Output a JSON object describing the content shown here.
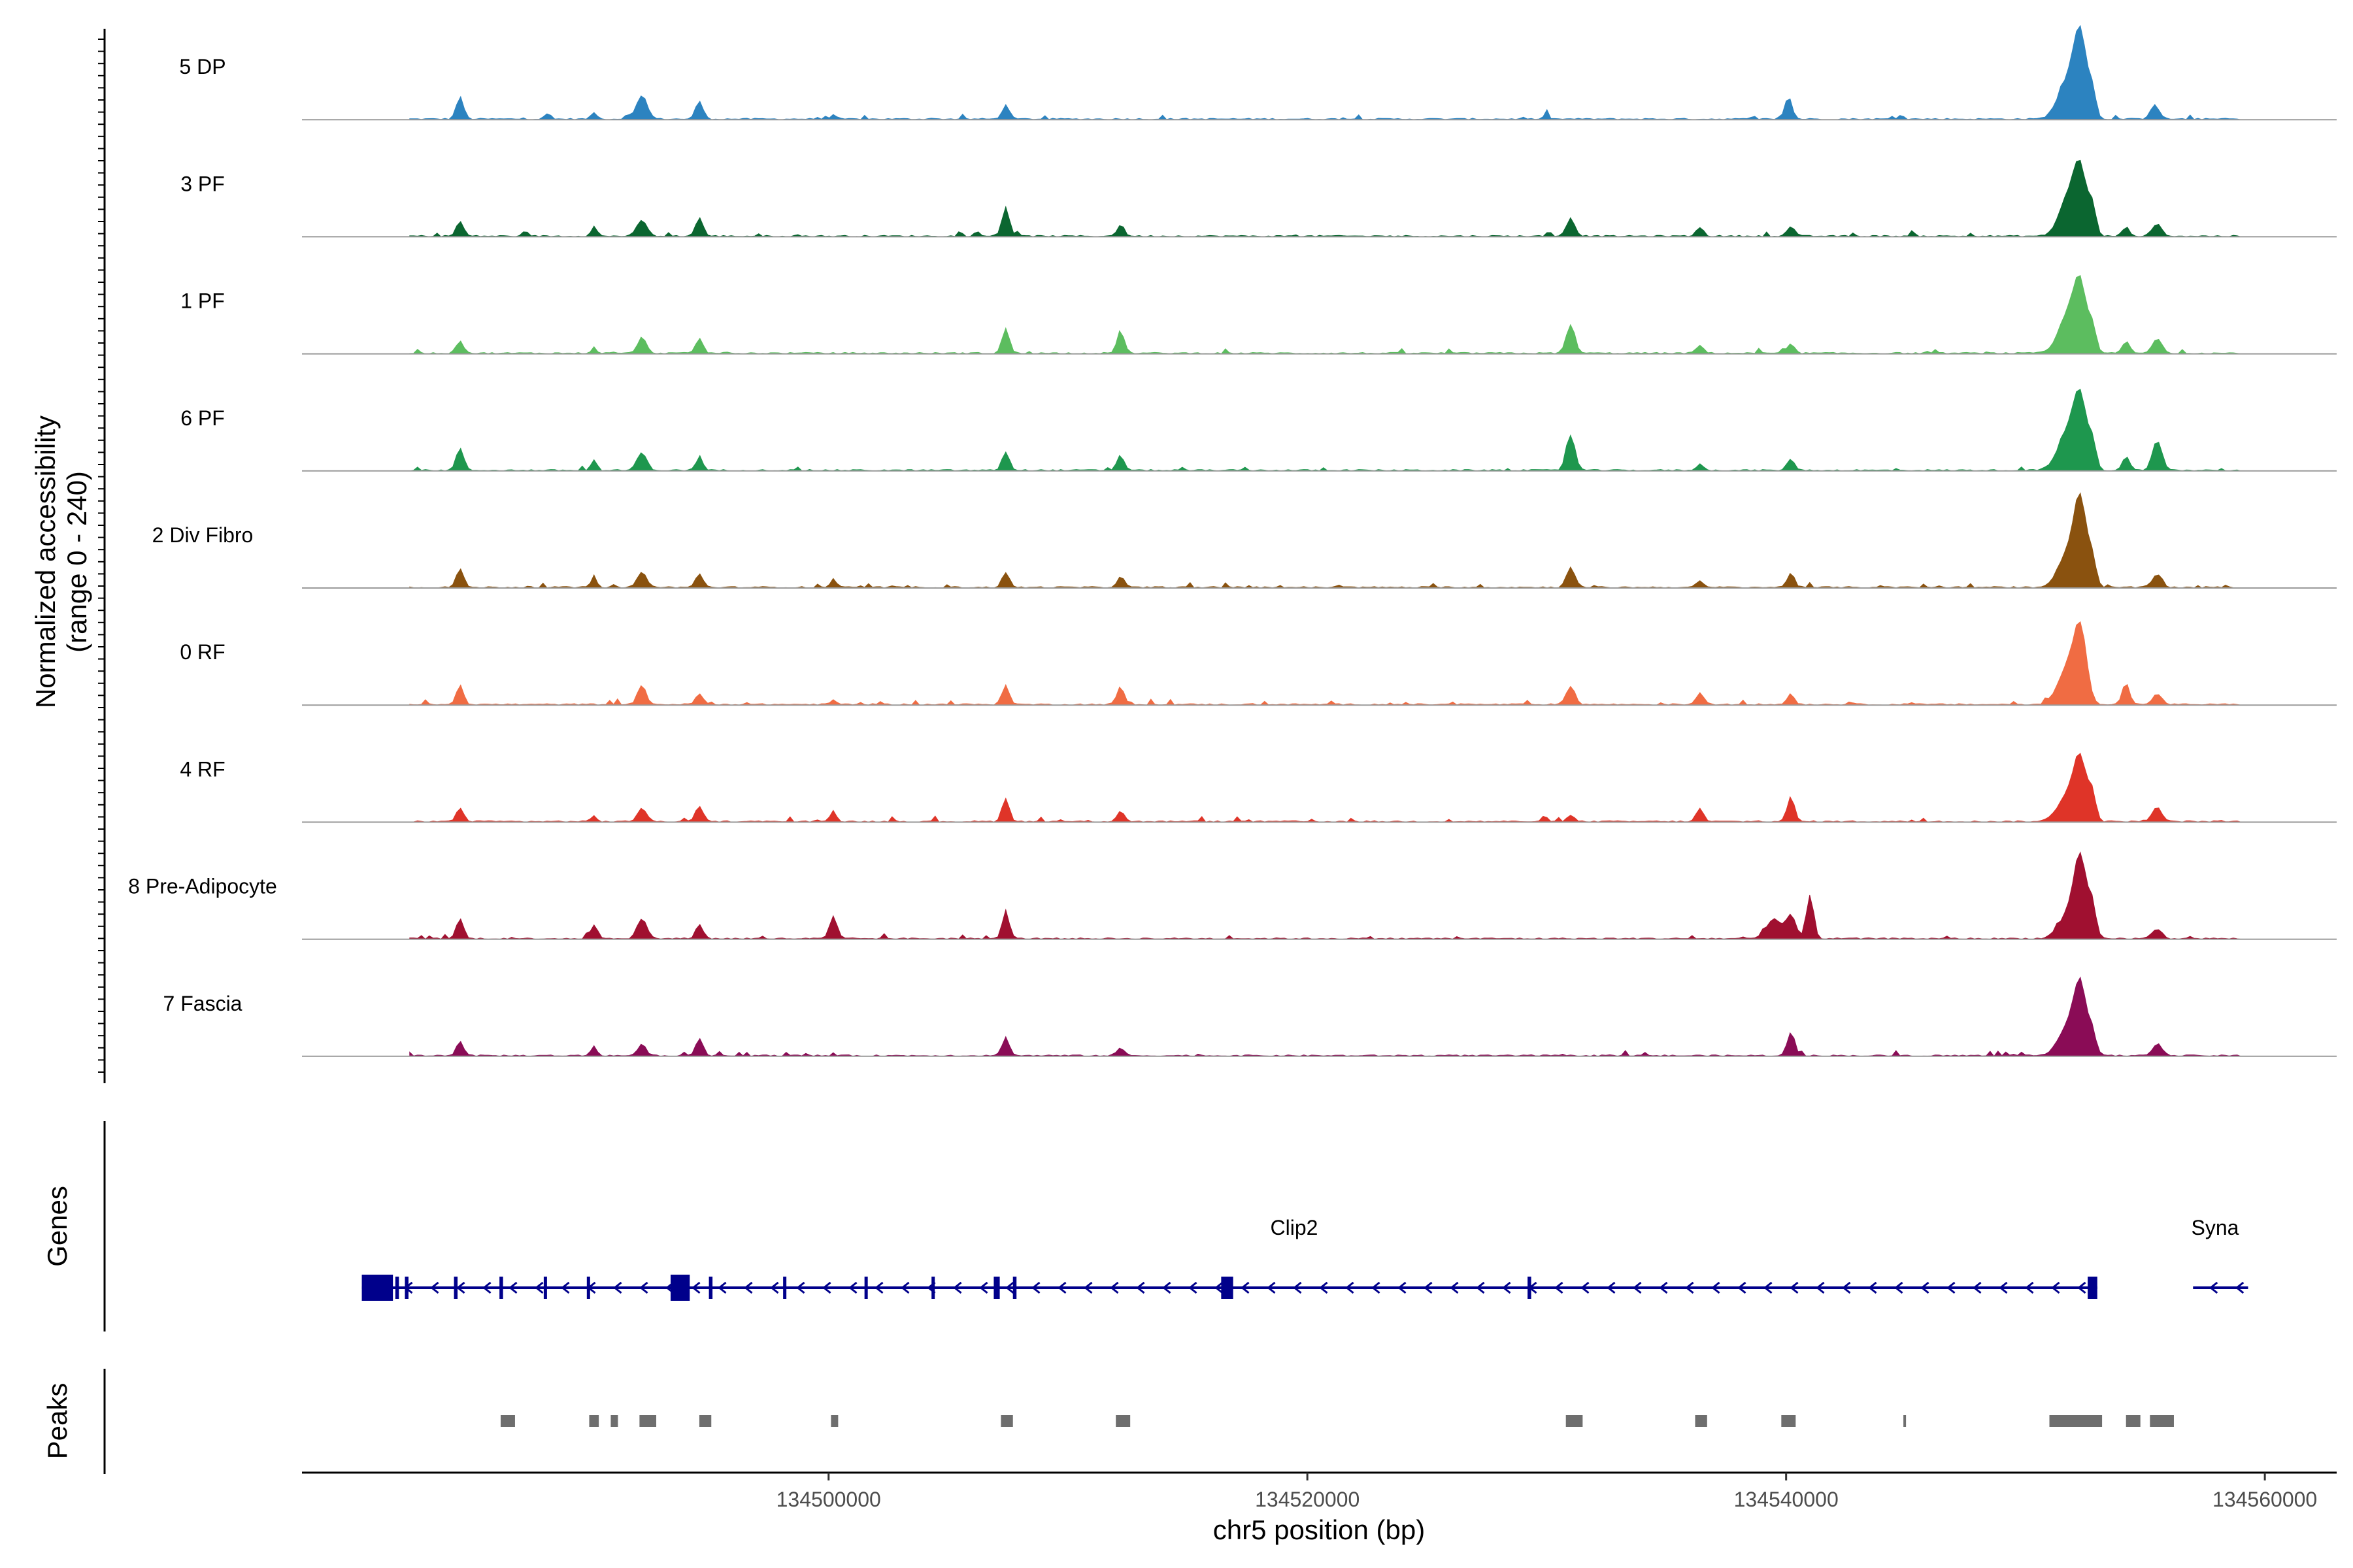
{
  "chart_data": {
    "type": "area",
    "title": "",
    "ylabel_line1": "Normalized accessibility",
    "ylabel_line2": "(range 0 - 240)",
    "xlabel": "chr5 position (bp)",
    "genes_label": "Genes",
    "peaks_label": "Peaks",
    "chromosome": "chr5",
    "xlim": [
      134478000,
      134563000
    ],
    "xticks": [
      134500000,
      134520000,
      134540000,
      134560000
    ],
    "xtick_labels": [
      "134500000",
      "134520000",
      "134540000",
      "134560000"
    ],
    "ylim": [
      0,
      240
    ],
    "tracks": [
      {
        "name": "5 DP",
        "color": "#2c83c0",
        "peaks": [
          [
            134484600,
            45,
            150
          ],
          [
            134488200,
            10,
            100
          ],
          [
            134490200,
            14,
            110
          ],
          [
            134491600,
            10,
            100
          ],
          [
            134492200,
            47,
            220
          ],
          [
            134494600,
            37,
            150
          ],
          [
            134500200,
            8,
            110
          ],
          [
            134507400,
            28,
            150
          ],
          [
            134530000,
            8,
            110
          ],
          [
            134540100,
            45,
            150
          ],
          [
            134544800,
            8,
            100
          ],
          [
            134551800,
            80,
            420
          ],
          [
            134552300,
            150,
            260
          ],
          [
            134552800,
            48,
            150
          ],
          [
            134555400,
            30,
            180
          ]
        ]
      },
      {
        "name": "3 PF",
        "color": "#0b6630",
        "peaks": [
          [
            134484600,
            30,
            150
          ],
          [
            134490200,
            20,
            120
          ],
          [
            134492200,
            33,
            200
          ],
          [
            134494600,
            38,
            150
          ],
          [
            134507400,
            60,
            150
          ],
          [
            134512200,
            23,
            150
          ],
          [
            134531000,
            36,
            180
          ],
          [
            134536400,
            18,
            150
          ],
          [
            134540200,
            20,
            150
          ],
          [
            134551800,
            80,
            380
          ],
          [
            134552300,
            120,
            260
          ],
          [
            134552800,
            54,
            150
          ],
          [
            134554200,
            18,
            150
          ],
          [
            134555500,
            24,
            200
          ]
        ]
      },
      {
        "name": "1 PF",
        "color": "#5cbd5f",
        "peaks": [
          [
            134484600,
            26,
            150
          ],
          [
            134490200,
            12,
            110
          ],
          [
            134492200,
            32,
            180
          ],
          [
            134494600,
            30,
            150
          ],
          [
            134507400,
            50,
            150
          ],
          [
            134512200,
            46,
            150
          ],
          [
            134531000,
            58,
            180
          ],
          [
            134536400,
            16,
            150
          ],
          [
            134540200,
            18,
            150
          ],
          [
            134551800,
            80,
            400
          ],
          [
            134552300,
            120,
            260
          ],
          [
            134552800,
            48,
            150
          ],
          [
            134554200,
            24,
            150
          ],
          [
            134555500,
            28,
            200
          ]
        ]
      },
      {
        "name": "6 PF",
        "color": "#1e974e",
        "peaks": [
          [
            134484600,
            46,
            150
          ],
          [
            134490200,
            20,
            120
          ],
          [
            134492200,
            36,
            200
          ],
          [
            134494600,
            22,
            150
          ],
          [
            134507400,
            38,
            150
          ],
          [
            134512200,
            30,
            150
          ],
          [
            134531000,
            72,
            180
          ],
          [
            134536400,
            12,
            150
          ],
          [
            134540200,
            24,
            150
          ],
          [
            134551800,
            80,
            420
          ],
          [
            134552300,
            124,
            260
          ],
          [
            134552800,
            52,
            150
          ],
          [
            134554200,
            28,
            150
          ],
          [
            134555500,
            60,
            200
          ]
        ]
      },
      {
        "name": "2 Div Fibro",
        "color": "#8a520f",
        "peaks": [
          [
            134484600,
            38,
            150
          ],
          [
            134490200,
            22,
            120
          ],
          [
            134492200,
            30,
            200
          ],
          [
            134494600,
            28,
            150
          ],
          [
            134500200,
            18,
            120
          ],
          [
            134507400,
            30,
            150
          ],
          [
            134512200,
            22,
            150
          ],
          [
            134531000,
            40,
            180
          ],
          [
            134536400,
            12,
            150
          ],
          [
            134540200,
            30,
            150
          ],
          [
            134551800,
            70,
            420
          ],
          [
            134552300,
            156,
            260
          ],
          [
            134552800,
            50,
            150
          ],
          [
            134555500,
            26,
            200
          ]
        ]
      },
      {
        "name": "0 RF",
        "color": "#f06c43",
        "peaks": [
          [
            134484600,
            40,
            150
          ],
          [
            134492200,
            38,
            180
          ],
          [
            134494600,
            22,
            150
          ],
          [
            134500200,
            10,
            110
          ],
          [
            134507400,
            40,
            150
          ],
          [
            134512200,
            36,
            150
          ],
          [
            134531000,
            38,
            180
          ],
          [
            134536400,
            24,
            150
          ],
          [
            134540200,
            22,
            150
          ],
          [
            134551800,
            76,
            420
          ],
          [
            134552300,
            130,
            260
          ],
          [
            134554200,
            44,
            150
          ],
          [
            134555500,
            20,
            200
          ]
        ]
      },
      {
        "name": "4 RF",
        "color": "#df3428",
        "peaks": [
          [
            134484600,
            28,
            150
          ],
          [
            134490200,
            12,
            110
          ],
          [
            134492200,
            28,
            180
          ],
          [
            134494600,
            32,
            150
          ],
          [
            134500200,
            24,
            120
          ],
          [
            134507400,
            48,
            150
          ],
          [
            134512200,
            22,
            150
          ],
          [
            134531000,
            12,
            150
          ],
          [
            134536400,
            26,
            150
          ],
          [
            134540200,
            50,
            150
          ],
          [
            134551800,
            56,
            420
          ],
          [
            134552300,
            110,
            260
          ],
          [
            134552800,
            50,
            150
          ],
          [
            134555500,
            28,
            200
          ]
        ]
      },
      {
        "name": "8 Pre-Adipocyte",
        "color": "#a01030",
        "peaks": [
          [
            134484600,
            40,
            150
          ],
          [
            134490200,
            28,
            150
          ],
          [
            134492200,
            40,
            200
          ],
          [
            134494600,
            30,
            150
          ],
          [
            134500200,
            46,
            150
          ],
          [
            134507400,
            52,
            150
          ],
          [
            134539500,
            40,
            300
          ],
          [
            134540200,
            46,
            200
          ],
          [
            134541000,
            90,
            150
          ],
          [
            134551800,
            50,
            400
          ],
          [
            134552300,
            150,
            260
          ],
          [
            134552800,
            60,
            150
          ],
          [
            134555500,
            20,
            200
          ]
        ]
      },
      {
        "name": "7 Fascia",
        "color": "#8a0c56",
        "peaks": [
          [
            134484600,
            30,
            150
          ],
          [
            134490200,
            20,
            120
          ],
          [
            134492200,
            22,
            180
          ],
          [
            134494600,
            36,
            150
          ],
          [
            134507400,
            38,
            150
          ],
          [
            134512200,
            16,
            150
          ],
          [
            134540200,
            48,
            150
          ],
          [
            134551800,
            60,
            420
          ],
          [
            134552300,
            126,
            260
          ],
          [
            134552800,
            40,
            150
          ],
          [
            134555500,
            24,
            200
          ]
        ]
      }
    ],
    "genes": [
      {
        "name": "Clip2",
        "strand": "-",
        "start": 134480500,
        "end": 134553000,
        "exons": [
          [
            134480500,
            134481800
          ],
          [
            134481900,
            134482050
          ],
          [
            134482300,
            134482450
          ],
          [
            134484350,
            134484500
          ],
          [
            134486250,
            134486400
          ],
          [
            134488100,
            134488180
          ],
          [
            134489900,
            134489980
          ],
          [
            134493400,
            134494200
          ],
          [
            134495000,
            134495150
          ],
          [
            134498100,
            134498180
          ],
          [
            134501500,
            134501580
          ],
          [
            134504300,
            134504400
          ],
          [
            134506900,
            134507150
          ],
          [
            134507700,
            134507850
          ],
          [
            134516400,
            134516900
          ],
          [
            134529200,
            134529350
          ],
          [
            134552600,
            134553000
          ]
        ]
      },
      {
        "name": "Syna",
        "strand": "-",
        "start": 134557000,
        "end": 134559300,
        "exons": []
      }
    ],
    "peak_regions": [
      [
        134486300,
        134486900
      ],
      [
        134490000,
        134490400
      ],
      [
        134490900,
        134491200
      ],
      [
        134492100,
        134492800
      ],
      [
        134494600,
        134495100
      ],
      [
        134500100,
        134500400
      ],
      [
        134507200,
        134507700
      ],
      [
        134512000,
        134512600
      ],
      [
        134530800,
        134531500
      ],
      [
        134536200,
        134536700
      ],
      [
        134539800,
        134540400
      ],
      [
        134544900,
        134545000
      ],
      [
        134551000,
        134553200
      ],
      [
        134554200,
        134554800
      ],
      [
        134555200,
        134556200
      ]
    ]
  }
}
